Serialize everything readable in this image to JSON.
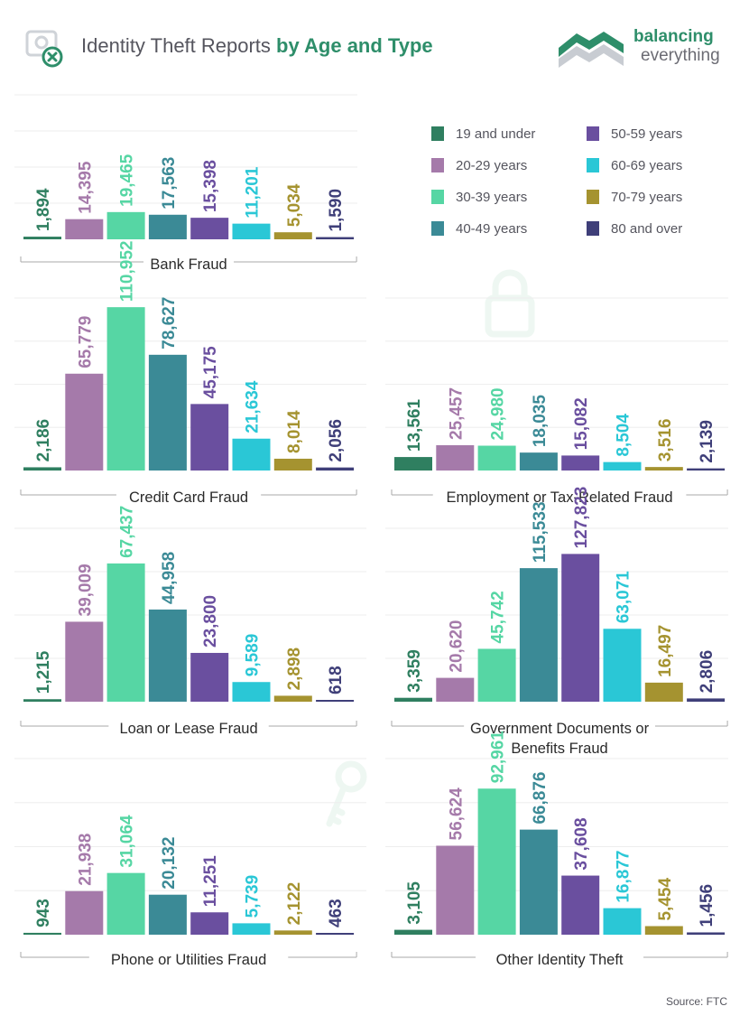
{
  "header": {
    "title_part1": "Identity Theft Reports ",
    "title_part2": "by Age and Type",
    "logo_line1": "balancing",
    "logo_line2": "everything"
  },
  "source": "Source: FTC",
  "colors": {
    "title_accent": "#2e8e6a",
    "axis": "#aaaaaa",
    "grid": "#eeeeee"
  },
  "icons": [
    "webcam-icon",
    "lock-icon",
    "key-icon"
  ],
  "legend": [
    {
      "label": "19 and under",
      "color": "#2f7f60"
    },
    {
      "label": "20-29 years",
      "color": "#a57aaa"
    },
    {
      "label": "30-39 years",
      "color": "#56d6a4"
    },
    {
      "label": "40-49 years",
      "color": "#3b8a96"
    },
    {
      "label": "50-59 years",
      "color": "#6a4f9f"
    },
    {
      "label": "60-69 years",
      "color": "#2ac7d6"
    },
    {
      "label": "70-79 years",
      "color": "#a59330"
    },
    {
      "label": "80 and over",
      "color": "#3f3f79"
    }
  ],
  "chart_data": [
    {
      "type": "bar",
      "title": "Bank Fraud",
      "categories": [
        "19 and under",
        "20-29 years",
        "30-39 years",
        "40-49 years",
        "50-59 years",
        "60-69 years",
        "70-79 years",
        "80 and over"
      ],
      "values": [
        1894,
        14395,
        19465,
        17563,
        15398,
        11201,
        5034,
        1590
      ],
      "labels": [
        "1,894",
        "14,395",
        "19,465",
        "17,563",
        "15,398",
        "11,201",
        "5,034",
        "1,590"
      ]
    },
    {
      "type": "bar",
      "title": "Credit Card Fraud",
      "categories": [
        "19 and under",
        "20-29 years",
        "30-39 years",
        "40-49 years",
        "50-59 years",
        "60-69 years",
        "70-79 years",
        "80 and over"
      ],
      "values": [
        2186,
        65779,
        110952,
        78627,
        45175,
        21634,
        8014,
        2056
      ],
      "labels": [
        "2,186",
        "65,779",
        "110,952",
        "78,627",
        "45,175",
        "21,634",
        "8,014",
        "2,056"
      ]
    },
    {
      "type": "bar",
      "title": "Employment or Tax-Related Fraud",
      "categories": [
        "19 and under",
        "20-29 years",
        "30-39 years",
        "40-49 years",
        "50-59 years",
        "60-69 years",
        "70-79 years",
        "80 and over"
      ],
      "values": [
        13561,
        25457,
        24980,
        18035,
        15082,
        8504,
        3516,
        2139
      ],
      "labels": [
        "13,561",
        "25,457",
        "24,980",
        "18,035",
        "15,082",
        "8,504",
        "3,516",
        "2,139"
      ]
    },
    {
      "type": "bar",
      "title": "Loan or Lease Fraud",
      "categories": [
        "19 and under",
        "20-29 years",
        "30-39 years",
        "40-49 years",
        "50-59 years",
        "60-69 years",
        "70-79 years",
        "80 and over"
      ],
      "values": [
        1215,
        39009,
        67437,
        44958,
        23800,
        9589,
        2898,
        618
      ],
      "labels": [
        "1,215",
        "39,009",
        "67,437",
        "44,958",
        "23,800",
        "9,589",
        "2,898",
        "618"
      ]
    },
    {
      "type": "bar",
      "title": "Government Documents or Benefits Fraud",
      "title_lines": [
        "Government Documents or",
        "Benefits Fraud"
      ],
      "categories": [
        "19 and under",
        "20-29 years",
        "30-39 years",
        "40-49 years",
        "50-59 years",
        "60-69 years",
        "70-79 years",
        "80 and over"
      ],
      "values": [
        3359,
        20620,
        45742,
        115533,
        127823,
        63071,
        16497,
        2806
      ],
      "labels": [
        "3,359",
        "20,620",
        "45,742",
        "115,533",
        "127,823",
        "63,071",
        "16,497",
        "2,806"
      ]
    },
    {
      "type": "bar",
      "title": "Phone or Utilities Fraud",
      "categories": [
        "19 and under",
        "20-29 years",
        "30-39 years",
        "40-49 years",
        "50-59 years",
        "60-69 years",
        "70-79 years",
        "80 and over"
      ],
      "values": [
        943,
        21938,
        31064,
        20132,
        11251,
        5739,
        2122,
        463
      ],
      "labels": [
        "943",
        "21,938",
        "31,064",
        "20,132",
        "11,251",
        "5,739",
        "2,122",
        "463"
      ]
    },
    {
      "type": "bar",
      "title": "Other Identity Theft",
      "categories": [
        "19 and under",
        "20-29 years",
        "30-39 years",
        "40-49 years",
        "50-59 years",
        "60-69 years",
        "70-79 years",
        "80 and over"
      ],
      "values": [
        3105,
        56624,
        92961,
        66876,
        37608,
        16877,
        5454,
        1456
      ],
      "labels": [
        "3,105",
        "56,624",
        "92,961",
        "66,876",
        "37,608",
        "16,877",
        "5,454",
        "1,456"
      ]
    }
  ]
}
